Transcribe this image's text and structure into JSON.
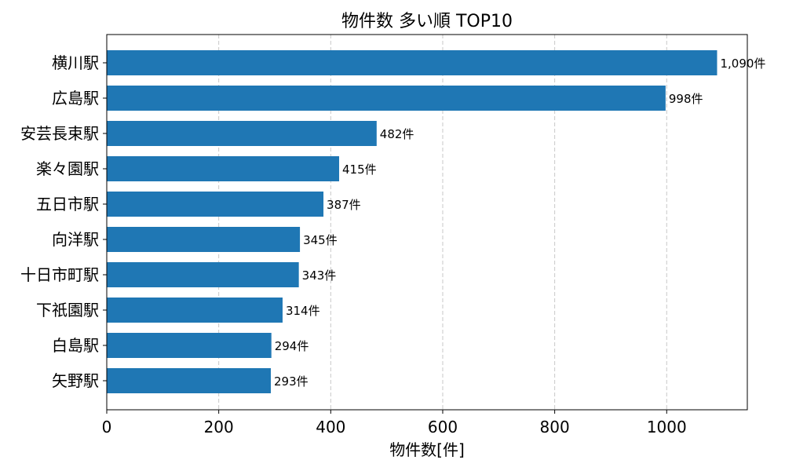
{
  "chart_data": {
    "type": "bar",
    "orientation": "horizontal",
    "title": "物件数 多い順 TOP10",
    "xlabel": "物件数[件]",
    "ylabel": "",
    "xlim": [
      0,
      1144
    ],
    "xticks": [
      0,
      200,
      400,
      600,
      800,
      1000
    ],
    "grid": "x",
    "color": "#1f77b4",
    "categories": [
      "横川駅",
      "広島駅",
      "安芸長束駅",
      "楽々園駅",
      "五日市駅",
      "向洋駅",
      "十日市町駅",
      "下祇園駅",
      "白島駅",
      "矢野駅"
    ],
    "values": [
      1090,
      998,
      482,
      415,
      387,
      345,
      343,
      314,
      294,
      293
    ],
    "data_labels": [
      "1,090件",
      "998件",
      "482件",
      "415件",
      "387件",
      "345件",
      "343件",
      "314件",
      "294件",
      "293件"
    ]
  }
}
